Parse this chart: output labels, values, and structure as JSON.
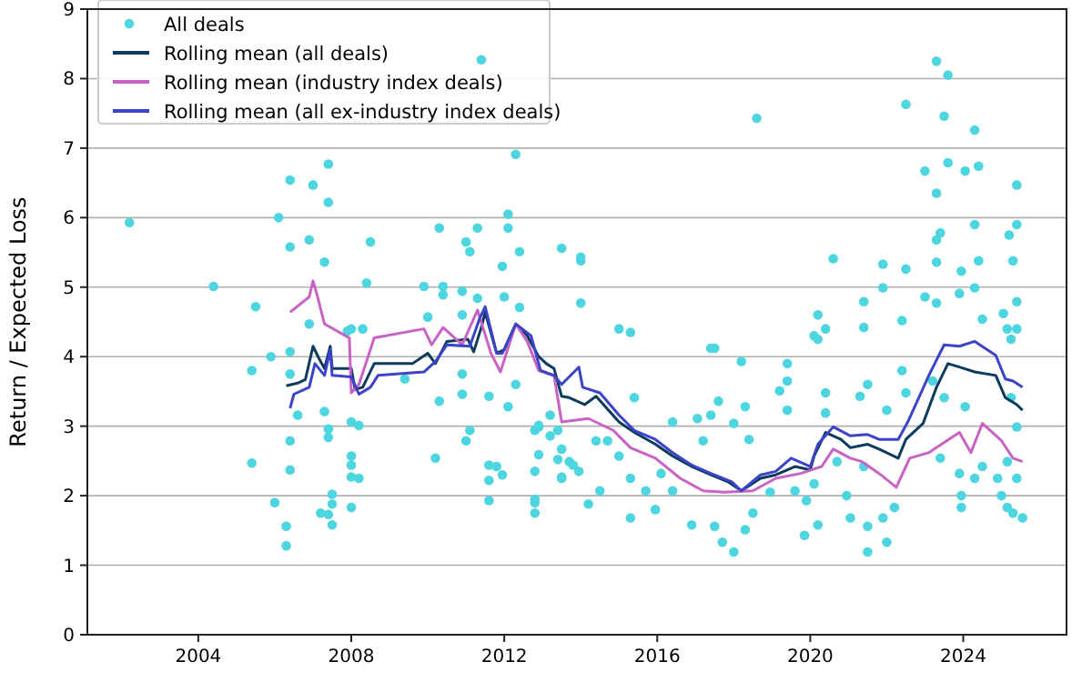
{
  "chart_data": {
    "type": "scatter",
    "ylabel": "Return / Expected Loss",
    "xlim": [
      2001.1,
      2026.7
    ],
    "xticks": [
      2004,
      2008,
      2012,
      2016,
      2020,
      2024
    ],
    "ylim": [
      0,
      9
    ],
    "yticks": [
      0,
      1,
      2,
      3,
      4,
      5,
      6,
      7,
      8,
      9
    ],
    "grid": "y",
    "legend": "top left",
    "series": [
      {
        "name": "All deals",
        "type": "scatter",
        "marker": "circle",
        "color": "#4dd6df",
        "x": [
          2002.2,
          2004.4,
          2005.5,
          2006.1,
          2006.4,
          2007.0,
          2007.4,
          2007.4,
          2006.9,
          2006.4,
          2007.3,
          2008.5,
          2008.4,
          2010.3,
          2011.0,
          2011.1,
          2011.3,
          2011.4,
          2012.3,
          2012.1,
          2012.1,
          2012.4,
          2013.5,
          2014.0,
          2014.0,
          2010.0,
          2009.9,
          2010.4,
          2010.4,
          2010.9,
          2010.9,
          2012.0,
          2011.95,
          2011.3,
          2012.4,
          2006.9,
          2008.3,
          2007.9,
          2023.3,
          2023.6,
          2022.5,
          2018.6,
          2023.5,
          2024.3,
          2023.0,
          2023.6,
          2024.05,
          2024.4,
          2025.4,
          2023.3,
          2014.0,
          2015.0,
          2015.3,
          2017.4,
          2020.6,
          2021.9,
          2022.5,
          2021.9,
          2021.4,
          2020.2,
          2020.4,
          2020.2,
          2021.4,
          2022.4,
          2023.0,
          2023.3,
          2023.4,
          2023.3,
          2023.3,
          2023.95,
          2024.3,
          2024.4,
          2023.9,
          2024.3,
          2024.5,
          2025.2,
          2025.4,
          2025.3,
          2025.4,
          2025.05,
          2025.4,
          2025.25,
          2005.4,
          2005.9,
          2006.4,
          2005.4,
          2006.0,
          2006.3,
          2006.3,
          2006.4,
          2006.4,
          2006.6,
          2006.4,
          2007.2,
          2007.4,
          2007.5,
          2007.5,
          2007.5,
          2007.4,
          2007.4,
          2007.3,
          2008.0,
          2008.2,
          2008.0,
          2008.0,
          2008.0,
          2008.2,
          2008.0,
          2008.0,
          2009.4,
          2010.3,
          2010.2,
          2010.9,
          2011.0,
          2011.1,
          2010.9,
          2011.6,
          2011.6,
          2011.6,
          2011.6,
          2011.8,
          2011.95,
          2012.1,
          2012.3,
          2012.8,
          2012.8,
          2012.8,
          2012.9,
          2012.8,
          2012.9,
          2013.2,
          2013.4,
          2013.4,
          2013.5,
          2013.5,
          2013.8,
          2013.95,
          2012.8,
          2012.9,
          2013.2,
          2013.5,
          2013.7,
          2014.2,
          2014.5,
          2014.4,
          2014.7,
          2015.0,
          2015.3,
          2015.4,
          2015.3,
          2015.7,
          2015.95,
          2016.1,
          2016.4,
          2016.4,
          2016.9,
          2017.05,
          2017.2,
          2017.5,
          2017.4,
          2017.6,
          2017.5,
          2017.7,
          2018.0,
          2018.0,
          2018.2,
          2018.3,
          2018.4,
          2018.5,
          2018.3,
          2018.95,
          2019.2,
          2019.4,
          2019.4,
          2019.4,
          2019.6,
          2019.85,
          2019.9,
          2020.1,
          2020.1,
          2020.2,
          2020.4,
          2020.4,
          2020.7,
          2020.95,
          2021.05,
          2021.3,
          2021.5,
          2021.4,
          2021.5,
          2021.5,
          2022.0,
          2022.0,
          2021.9,
          2022.2,
          2022.5,
          2022.4,
          2023.2,
          2023.4,
          2023.9,
          2023.95,
          2023.95,
          2024.3,
          2024.5,
          2024.9,
          2025.0,
          2025.15,
          2025.3,
          2025.55,
          2025.4,
          2025.15,
          2025.4,
          2025.25,
          2025.15,
          2024.05,
          2023.5
        ],
        "values": [
          5.93,
          5.01,
          4.72,
          6.0,
          6.54,
          6.47,
          6.77,
          6.22,
          5.68,
          5.58,
          5.36,
          5.65,
          5.06,
          5.85,
          5.65,
          5.51,
          5.85,
          8.27,
          6.91,
          6.05,
          5.85,
          5.51,
          5.56,
          5.43,
          4.77,
          4.57,
          5.01,
          5.01,
          4.89,
          4.94,
          4.6,
          4.86,
          5.3,
          4.84,
          4.71,
          4.47,
          4.4,
          4.37,
          8.25,
          8.05,
          7.63,
          7.43,
          7.46,
          7.26,
          6.67,
          6.79,
          6.67,
          6.74,
          6.47,
          6.35,
          5.38,
          4.4,
          4.35,
          4.12,
          5.41,
          5.33,
          5.26,
          4.99,
          4.79,
          4.6,
          4.4,
          4.25,
          4.42,
          4.52,
          4.86,
          4.77,
          5.78,
          5.68,
          5.36,
          5.23,
          5.9,
          5.38,
          4.91,
          4.99,
          4.54,
          5.75,
          5.9,
          5.38,
          4.79,
          4.62,
          4.4,
          4.25,
          3.8,
          4.0,
          4.07,
          2.47,
          1.9,
          1.56,
          1.28,
          2.37,
          2.79,
          3.16,
          3.75,
          1.75,
          1.73,
          1.58,
          1.88,
          2.02,
          2.84,
          2.96,
          3.21,
          3.06,
          3.01,
          2.57,
          2.44,
          2.27,
          2.25,
          1.83,
          4.4,
          3.68,
          3.36,
          2.54,
          3.46,
          2.79,
          2.94,
          3.75,
          3.43,
          2.44,
          2.22,
          1.93,
          2.42,
          2.3,
          3.28,
          3.6,
          2.35,
          1.9,
          1.75,
          2.59,
          2.94,
          3.01,
          3.16,
          2.94,
          2.52,
          2.67,
          2.25,
          2.44,
          2.35,
          1.95,
          2.99,
          2.86,
          2.27,
          2.49,
          1.88,
          2.07,
          2.79,
          2.79,
          2.57,
          1.68,
          3.41,
          2.25,
          2.07,
          1.8,
          2.32,
          2.07,
          3.06,
          1.58,
          3.11,
          2.79,
          4.12,
          3.16,
          3.36,
          1.56,
          1.33,
          1.19,
          3.04,
          3.93,
          3.28,
          2.81,
          1.75,
          1.51,
          2.05,
          3.51,
          3.9,
          3.65,
          3.23,
          2.07,
          1.43,
          1.93,
          4.3,
          2.17,
          1.58,
          3.48,
          3.19,
          2.49,
          2.0,
          1.68,
          3.43,
          3.6,
          2.42,
          1.56,
          1.19,
          3.23,
          1.33,
          1.68,
          1.83,
          3.48,
          3.8,
          3.65,
          2.54,
          2.32,
          2.0,
          1.83,
          2.25,
          2.42,
          2.25,
          2.0,
          1.83,
          1.75,
          1.68,
          2.25,
          2.49,
          2.99,
          3.41,
          4.4,
          3.28,
          3.41
        ]
      },
      {
        "name": "Rolling mean (all deals)",
        "type": "line",
        "color": "#0d3b5e",
        "x": [
          2006.3,
          2006.6,
          2006.8,
          2007.0,
          2007.15,
          2007.3,
          2007.45,
          2007.5,
          2008.0,
          2008.1,
          2008.3,
          2008.6,
          2009.6,
          2010.0,
          2010.2,
          2010.5,
          2011.05,
          2011.2,
          2011.4,
          2011.5,
          2011.8,
          2012.0,
          2012.3,
          2012.6,
          2012.9,
          2013.1,
          2013.3,
          2013.5,
          2013.7,
          2014.1,
          2014.4,
          2015.0,
          2015.4,
          2015.95,
          2016.4,
          2016.9,
          2017.4,
          2017.85,
          2018.2,
          2018.7,
          2019.1,
          2019.6,
          2020.0,
          2020.1,
          2020.4,
          2020.8,
          2021.05,
          2021.5,
          2021.8,
          2022.3,
          2022.5,
          2022.95,
          2023.3,
          2023.6,
          2023.9,
          2024.3,
          2024.85,
          2025.1,
          2025.4,
          2025.55
        ],
        "values": [
          3.58,
          3.62,
          3.67,
          4.15,
          3.98,
          3.83,
          4.15,
          3.83,
          3.83,
          3.53,
          3.56,
          3.9,
          3.9,
          4.05,
          3.9,
          4.22,
          4.25,
          4.07,
          4.42,
          4.64,
          4.05,
          4.1,
          4.47,
          4.3,
          4.0,
          3.9,
          3.83,
          3.43,
          3.41,
          3.31,
          3.43,
          3.06,
          2.91,
          2.74,
          2.57,
          2.42,
          2.3,
          2.2,
          2.07,
          2.25,
          2.3,
          2.42,
          2.37,
          2.57,
          2.91,
          2.81,
          2.69,
          2.74,
          2.67,
          2.54,
          2.81,
          3.04,
          3.56,
          3.9,
          3.85,
          3.78,
          3.73,
          3.41,
          3.31,
          3.23
        ]
      },
      {
        "name": "Rolling mean (industry index deals)",
        "type": "line",
        "color": "#c862c4",
        "x": [
          2006.4,
          2006.9,
          2007.0,
          2007.1,
          2007.3,
          2007.95,
          2008.0,
          2008.2,
          2008.6,
          2009.9,
          2010.1,
          2010.4,
          2010.9,
          2011.3,
          2011.65,
          2011.9,
          2012.3,
          2012.6,
          2012.9,
          2013.3,
          2013.5,
          2014.2,
          2014.85,
          2015.3,
          2015.95,
          2016.6,
          2017.2,
          2017.75,
          2018.5,
          2019.1,
          2019.75,
          2020.3,
          2020.6,
          2021.05,
          2021.35,
          2021.8,
          2022.25,
          2022.6,
          2023.1,
          2023.9,
          2024.2,
          2024.5,
          2025.0,
          2025.3,
          2025.55
        ],
        "values": [
          4.64,
          4.86,
          5.09,
          4.9,
          4.47,
          4.27,
          3.48,
          3.6,
          4.27,
          4.4,
          4.17,
          4.42,
          4.17,
          4.67,
          4.05,
          3.78,
          4.47,
          4.22,
          3.8,
          3.73,
          3.06,
          3.11,
          2.94,
          2.69,
          2.54,
          2.25,
          2.07,
          2.05,
          2.07,
          2.25,
          2.32,
          2.42,
          2.67,
          2.54,
          2.49,
          2.32,
          2.12,
          2.54,
          2.62,
          2.91,
          2.62,
          3.04,
          2.79,
          2.54,
          2.49
        ]
      },
      {
        "name": "Rolling mean (all ex-industry index deals)",
        "type": "line",
        "color": "#3b44c8",
        "x": [
          2006.4,
          2006.5,
          2006.9,
          2007.05,
          2007.3,
          2007.45,
          2007.5,
          2008.0,
          2008.2,
          2008.5,
          2008.7,
          2009.9,
          2010.2,
          2010.5,
          2011.1,
          2011.35,
          2011.5,
          2011.8,
          2011.95,
          2012.3,
          2012.7,
          2012.95,
          2013.3,
          2013.5,
          2013.95,
          2014.05,
          2014.5,
          2015.0,
          2015.4,
          2015.95,
          2016.4,
          2016.9,
          2017.4,
          2017.95,
          2018.2,
          2018.7,
          2019.1,
          2019.5,
          2020.0,
          2020.2,
          2020.6,
          2021.05,
          2021.5,
          2021.8,
          2022.3,
          2022.55,
          2023.1,
          2023.5,
          2023.9,
          2024.3,
          2024.85,
          2025.1,
          2025.3,
          2025.55
        ],
        "values": [
          3.26,
          3.46,
          3.56,
          3.9,
          3.73,
          4.1,
          3.73,
          3.71,
          3.46,
          3.56,
          3.73,
          3.78,
          3.93,
          4.17,
          4.15,
          4.54,
          4.72,
          4.05,
          4.05,
          4.47,
          4.3,
          3.8,
          3.73,
          3.6,
          3.85,
          3.56,
          3.48,
          3.16,
          2.94,
          2.81,
          2.62,
          2.44,
          2.32,
          2.2,
          2.07,
          2.3,
          2.35,
          2.54,
          2.42,
          2.74,
          2.99,
          2.86,
          2.88,
          2.81,
          2.81,
          3.06,
          3.73,
          4.17,
          4.15,
          4.22,
          4.02,
          3.68,
          3.65,
          3.56
        ]
      }
    ]
  }
}
